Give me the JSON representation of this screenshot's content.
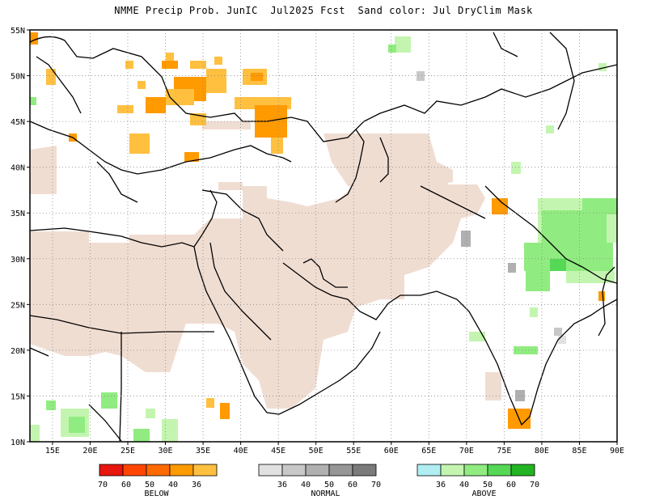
{
  "title": "NMME Precip Prob. JunIC  Jul2025 Fcst  Sand color: Jul DryClim Mask",
  "map": {
    "lon_range": [
      12,
      90
    ],
    "lat_range": [
      10,
      55
    ],
    "lon_ticks": [
      "15E",
      "20E",
      "25E",
      "30E",
      "35E",
      "40E",
      "45E",
      "50E",
      "55E",
      "60E",
      "65E",
      "70E",
      "75E",
      "80E",
      "85E",
      "90E"
    ],
    "lat_ticks": [
      "55N",
      "50N",
      "45N",
      "40N",
      "35N",
      "30N",
      "25N",
      "20N",
      "15N",
      "10N"
    ],
    "grid": "dotted"
  },
  "legend": {
    "below": {
      "label": "BELOW",
      "ticks": [
        "70",
        "60",
        "50",
        "40",
        "36"
      ],
      "colors": [
        "#e8160e",
        "#ff4500",
        "#ff6a00",
        "#ff9a00",
        "#ffc040"
      ]
    },
    "normal": {
      "label": "NORMAL",
      "ticks": [
        "36",
        "40",
        "50",
        "60",
        "70"
      ],
      "colors": [
        "#e1e1e1",
        "#c8c8c8",
        "#b0b0b0",
        "#969696",
        "#7a7a7a"
      ]
    },
    "above": {
      "label": "ABOVE",
      "ticks": [
        "36",
        "40",
        "50",
        "60",
        "70"
      ],
      "colors": [
        "#b0eef2",
        "#c4f5b0",
        "#90ec80",
        "#55d855",
        "#22b422"
      ]
    }
  },
  "colors": {
    "dry_mask": "#f0ddd2",
    "coast": "#000000"
  }
}
